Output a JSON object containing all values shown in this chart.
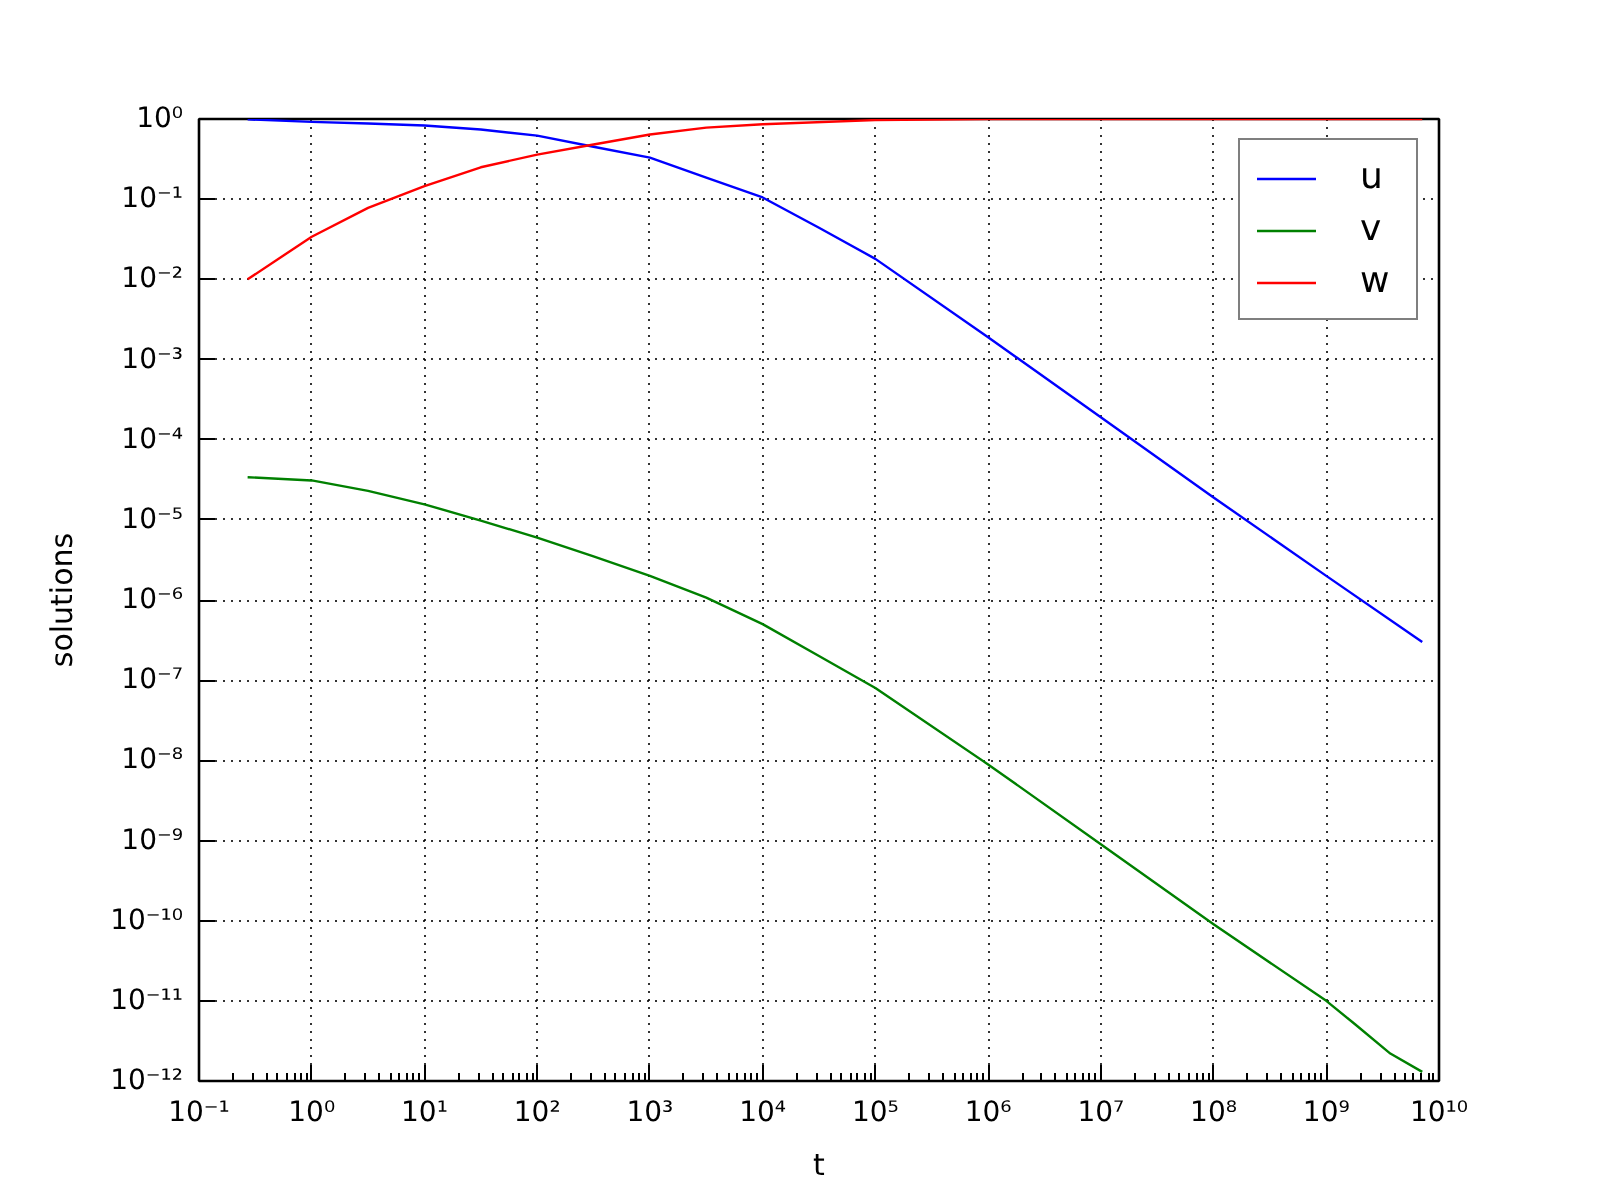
{
  "chart_data": {
    "type": "line",
    "xlabel": "t",
    "ylabel": "solutions",
    "log": "xy",
    "grid": true,
    "legend": "top right",
    "xlim": [
      0.1,
      10000000000.0
    ],
    "ylim": [
      1e-12,
      1
    ],
    "xticks": [
      {
        "value": 0.1,
        "label": "10⁻¹"
      },
      {
        "value": 1,
        "label": "10⁰"
      },
      {
        "value": 10,
        "label": "10¹"
      },
      {
        "value": 100,
        "label": "10²"
      },
      {
        "value": 1000,
        "label": "10³"
      },
      {
        "value": 10000,
        "label": "10⁴"
      },
      {
        "value": 100000,
        "label": "10⁵"
      },
      {
        "value": 1000000,
        "label": "10⁶"
      },
      {
        "value": 10000000,
        "label": "10⁷"
      },
      {
        "value": 100000000,
        "label": "10⁸"
      },
      {
        "value": 1000000000,
        "label": "10⁹"
      },
      {
        "value": 10000000000,
        "label": "10¹⁰"
      }
    ],
    "yticks": [
      {
        "value": 1e-12,
        "label": "10⁻¹²"
      },
      {
        "value": 1e-11,
        "label": "10⁻¹¹"
      },
      {
        "value": 1e-10,
        "label": "10⁻¹⁰"
      },
      {
        "value": 1e-09,
        "label": "10⁻⁹"
      },
      {
        "value": 1e-08,
        "label": "10⁻⁸"
      },
      {
        "value": 1e-07,
        "label": "10⁻⁷"
      },
      {
        "value": 1e-06,
        "label": "10⁻⁶"
      },
      {
        "value": 1e-05,
        "label": "10⁻⁵"
      },
      {
        "value": 0.0001,
        "label": "10⁻⁴"
      },
      {
        "value": 0.001,
        "label": "10⁻³"
      },
      {
        "value": 0.01,
        "label": "10⁻²"
      },
      {
        "value": 0.1,
        "label": "10⁻¹"
      },
      {
        "value": 1,
        "label": "10⁰"
      }
    ],
    "series": [
      {
        "name": "u",
        "color": "#0000ff",
        "x": [
          0.27,
          1,
          3.16,
          10,
          31.6,
          100,
          316,
          1000,
          3162,
          10000,
          31623,
          100000,
          1000000,
          10000000,
          100000000,
          1000000000,
          7100000000
        ],
        "values": [
          0.99,
          0.92,
          0.88,
          0.83,
          0.74,
          0.62,
          0.45,
          0.33,
          0.186,
          0.105,
          0.044,
          0.018,
          0.0019,
          0.00019,
          1.9e-05,
          2e-06,
          3e-07
        ]
      },
      {
        "name": "v",
        "color": "#008000",
        "x": [
          0.27,
          1,
          3.16,
          10,
          31.6,
          100,
          316,
          1000,
          3162,
          10000,
          31623,
          100000,
          1000000,
          10000000,
          100000000,
          1000000000,
          1800000000,
          3700000000,
          7100000000
        ],
        "values": [
          3.4e-05,
          3.1e-05,
          2.3e-05,
          1.56e-05,
          9.8e-06,
          6e-06,
          3.5e-06,
          2e-06,
          1.07e-06,
          5e-07,
          2e-07,
          8e-08,
          8.9e-09,
          9e-10,
          9e-11,
          1e-11,
          5.1e-12,
          2.2e-12,
          1.3e-12
        ]
      },
      {
        "name": "w",
        "color": "#ff0000",
        "x": [
          0.27,
          1,
          3.16,
          10,
          31.6,
          100,
          316,
          1000,
          3162,
          10000,
          100000,
          1000000,
          7100000000
        ],
        "values": [
          0.01,
          0.034,
          0.078,
          0.145,
          0.25,
          0.36,
          0.48,
          0.64,
          0.78,
          0.86,
          0.97,
          1.0,
          1.0
        ]
      }
    ]
  }
}
